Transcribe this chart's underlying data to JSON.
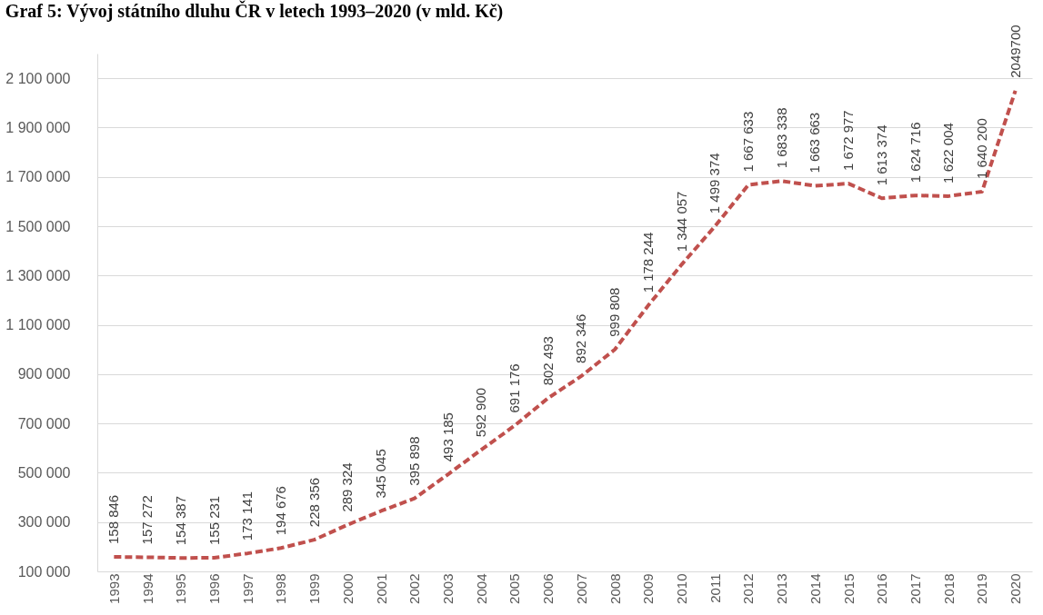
{
  "chart_data": {
    "type": "line",
    "title": "Graf 5: Vývoj státního dluhu ČR v letech 1993–2020 (v mld. Kč)",
    "categories": [
      "1993",
      "1994",
      "1995",
      "1996",
      "1997",
      "1998",
      "1999",
      "2000",
      "2001",
      "2002",
      "2003",
      "2004",
      "2005",
      "2006",
      "2007",
      "2008",
      "2009",
      "2010",
      "2011",
      "2012",
      "2013",
      "2014",
      "2015",
      "2016",
      "2017",
      "2018",
      "2019",
      "2020"
    ],
    "series": [
      {
        "color": "#c0504d",
        "values": [
          158846,
          157272,
          154387,
          155231,
          173141,
          194676,
          228356,
          289324,
          345045,
          395898,
          493185,
          592900,
          691176,
          802493,
          892346,
          999808,
          1178244,
          1344057,
          1499374,
          1667633,
          1683338,
          1663663,
          1672977,
          1613374,
          1624716,
          1622004,
          1640200,
          2049700
        ],
        "value_labels": [
          "158 846",
          "157 272",
          "154 387",
          "155 231",
          "173 141",
          "194 676",
          "228 356",
          "289 324",
          "345 045",
          "395 898",
          "493 185",
          "592 900",
          "691 176",
          "802 493",
          "892 346",
          "999 808",
          "1 178 244",
          "1 344 057",
          "1 499 374",
          "1 667 633",
          "1 683 338",
          "1 663 663",
          "1 672 977",
          "1 613 374",
          "1 624 716",
          "1 622 004",
          "1 640 200",
          "2049700"
        ]
      }
    ],
    "ylim": [
      100000,
      2200000
    ],
    "yticks": [
      {
        "value": 100000,
        "label": "100 000"
      },
      {
        "value": 300000,
        "label": "300 000"
      },
      {
        "value": 500000,
        "label": "500 000"
      },
      {
        "value": 700000,
        "label": "700 000"
      },
      {
        "value": 900000,
        "label": "900 000"
      },
      {
        "value": 1100000,
        "label": "1 100 000"
      },
      {
        "value": 1300000,
        "label": "1 300 000"
      },
      {
        "value": 1500000,
        "label": "1 500 000"
      },
      {
        "value": 1700000,
        "label": "1 700 000"
      },
      {
        "value": 1900000,
        "label": "1 900 000"
      },
      {
        "value": 2100000,
        "label": "2 100 000"
      }
    ],
    "grid": "y",
    "line_style": "dashed",
    "marker": "none",
    "legend": false
  }
}
